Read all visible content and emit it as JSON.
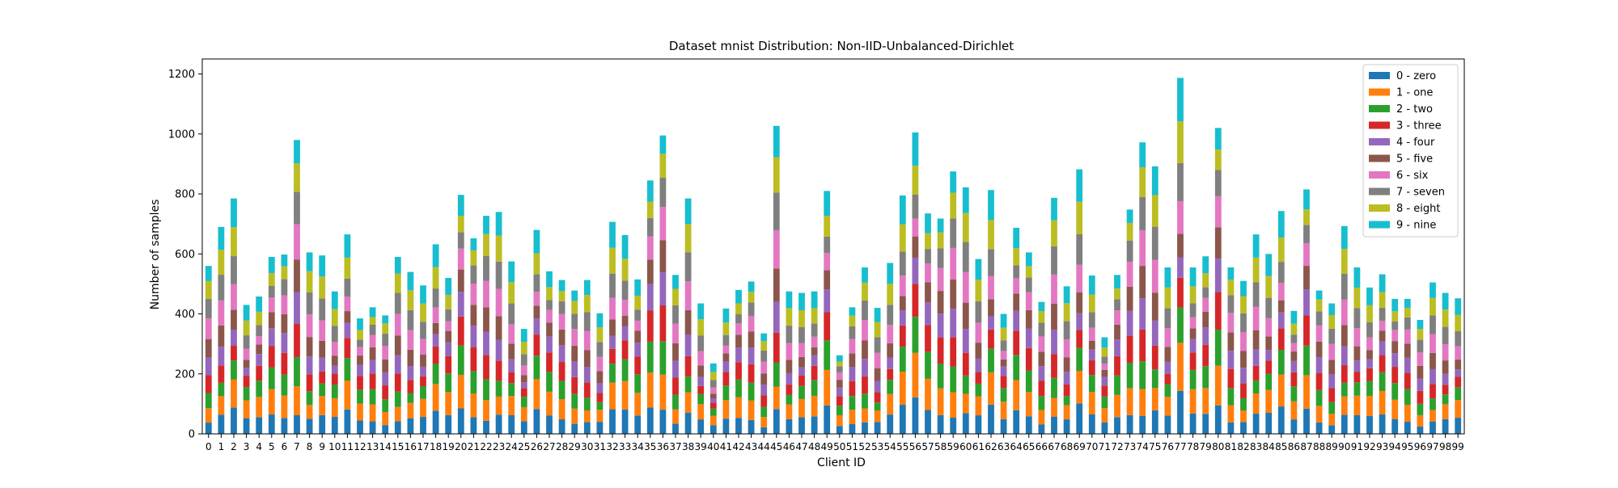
{
  "chart_data": {
    "type": "bar",
    "stacked": true,
    "title": "Dataset mnist Distribution: Non-IID-Unbalanced-Dirichlet",
    "xlabel": "Client ID",
    "ylabel": "Number of samples",
    "ylim": [
      0,
      1250
    ],
    "yticks": [
      0,
      200,
      400,
      600,
      800,
      1000,
      1200
    ],
    "grid": false,
    "legend_position": "top-right",
    "categories": [
      "0",
      "1",
      "2",
      "3",
      "4",
      "5",
      "6",
      "7",
      "8",
      "9",
      "10",
      "11",
      "12",
      "13",
      "14",
      "15",
      "16",
      "17",
      "18",
      "19",
      "20",
      "21",
      "22",
      "23",
      "24",
      "25",
      "26",
      "27",
      "28",
      "29",
      "30",
      "31",
      "32",
      "33",
      "34",
      "35",
      "36",
      "37",
      "38",
      "39",
      "40",
      "41",
      "42",
      "43",
      "44",
      "45",
      "46",
      "47",
      "48",
      "49",
      "50",
      "51",
      "52",
      "53",
      "54",
      "55",
      "56",
      "57",
      "58",
      "59",
      "60",
      "61",
      "62",
      "63",
      "64",
      "65",
      "66",
      "67",
      "68",
      "69",
      "70",
      "71",
      "72",
      "73",
      "74",
      "75",
      "76",
      "77",
      "78",
      "79",
      "80",
      "81",
      "82",
      "83",
      "84",
      "85",
      "86",
      "87",
      "88",
      "89",
      "90",
      "91",
      "92",
      "93",
      "94",
      "95",
      "96",
      "97",
      "98",
      "99"
    ],
    "totals": [
      560,
      690,
      785,
      430,
      458,
      590,
      598,
      980,
      605,
      595,
      475,
      665,
      385,
      422,
      395,
      590,
      540,
      495,
      632,
      520,
      797,
      652,
      727,
      740,
      575,
      350,
      680,
      542,
      513,
      478,
      513,
      402,
      707,
      663,
      515,
      845,
      995,
      530,
      785,
      435,
      235,
      418,
      480,
      508,
      335,
      1027,
      475,
      470,
      475,
      810,
      262,
      422,
      555,
      420,
      570,
      795,
      1005,
      735,
      718,
      875,
      822,
      583,
      813,
      400,
      687,
      605,
      440,
      787,
      492,
      882,
      528,
      322,
      530,
      748,
      972,
      892,
      555,
      1187,
      555,
      592,
      1020,
      555,
      510,
      665,
      600,
      743,
      410,
      815,
      478,
      435,
      693,
      555,
      488,
      532,
      450,
      450,
      380,
      505,
      470,
      452
    ],
    "series": [
      {
        "name": "0 - zero",
        "color": "#1f77b4",
        "share": 0.1
      },
      {
        "name": "1 - one",
        "color": "#ff7f0e",
        "share": 0.12
      },
      {
        "name": "2 - two",
        "color": "#2ca02c",
        "share": 0.1
      },
      {
        "name": "3 - three",
        "color": "#d62728",
        "share": 0.1
      },
      {
        "name": "4 - four",
        "color": "#9467bd",
        "share": 0.09
      },
      {
        "name": "5 - five",
        "color": "#8c564b",
        "share": 0.09
      },
      {
        "name": "6 - six",
        "color": "#e377c2",
        "share": 0.1
      },
      {
        "name": "7 - seven",
        "color": "#7f7f7f",
        "share": 0.1
      },
      {
        "name": "8 - eight",
        "color": "#bcbd22",
        "share": 0.1
      },
      {
        "name": "9 - nine",
        "color": "#17becf",
        "share": 0.1
      }
    ]
  }
}
